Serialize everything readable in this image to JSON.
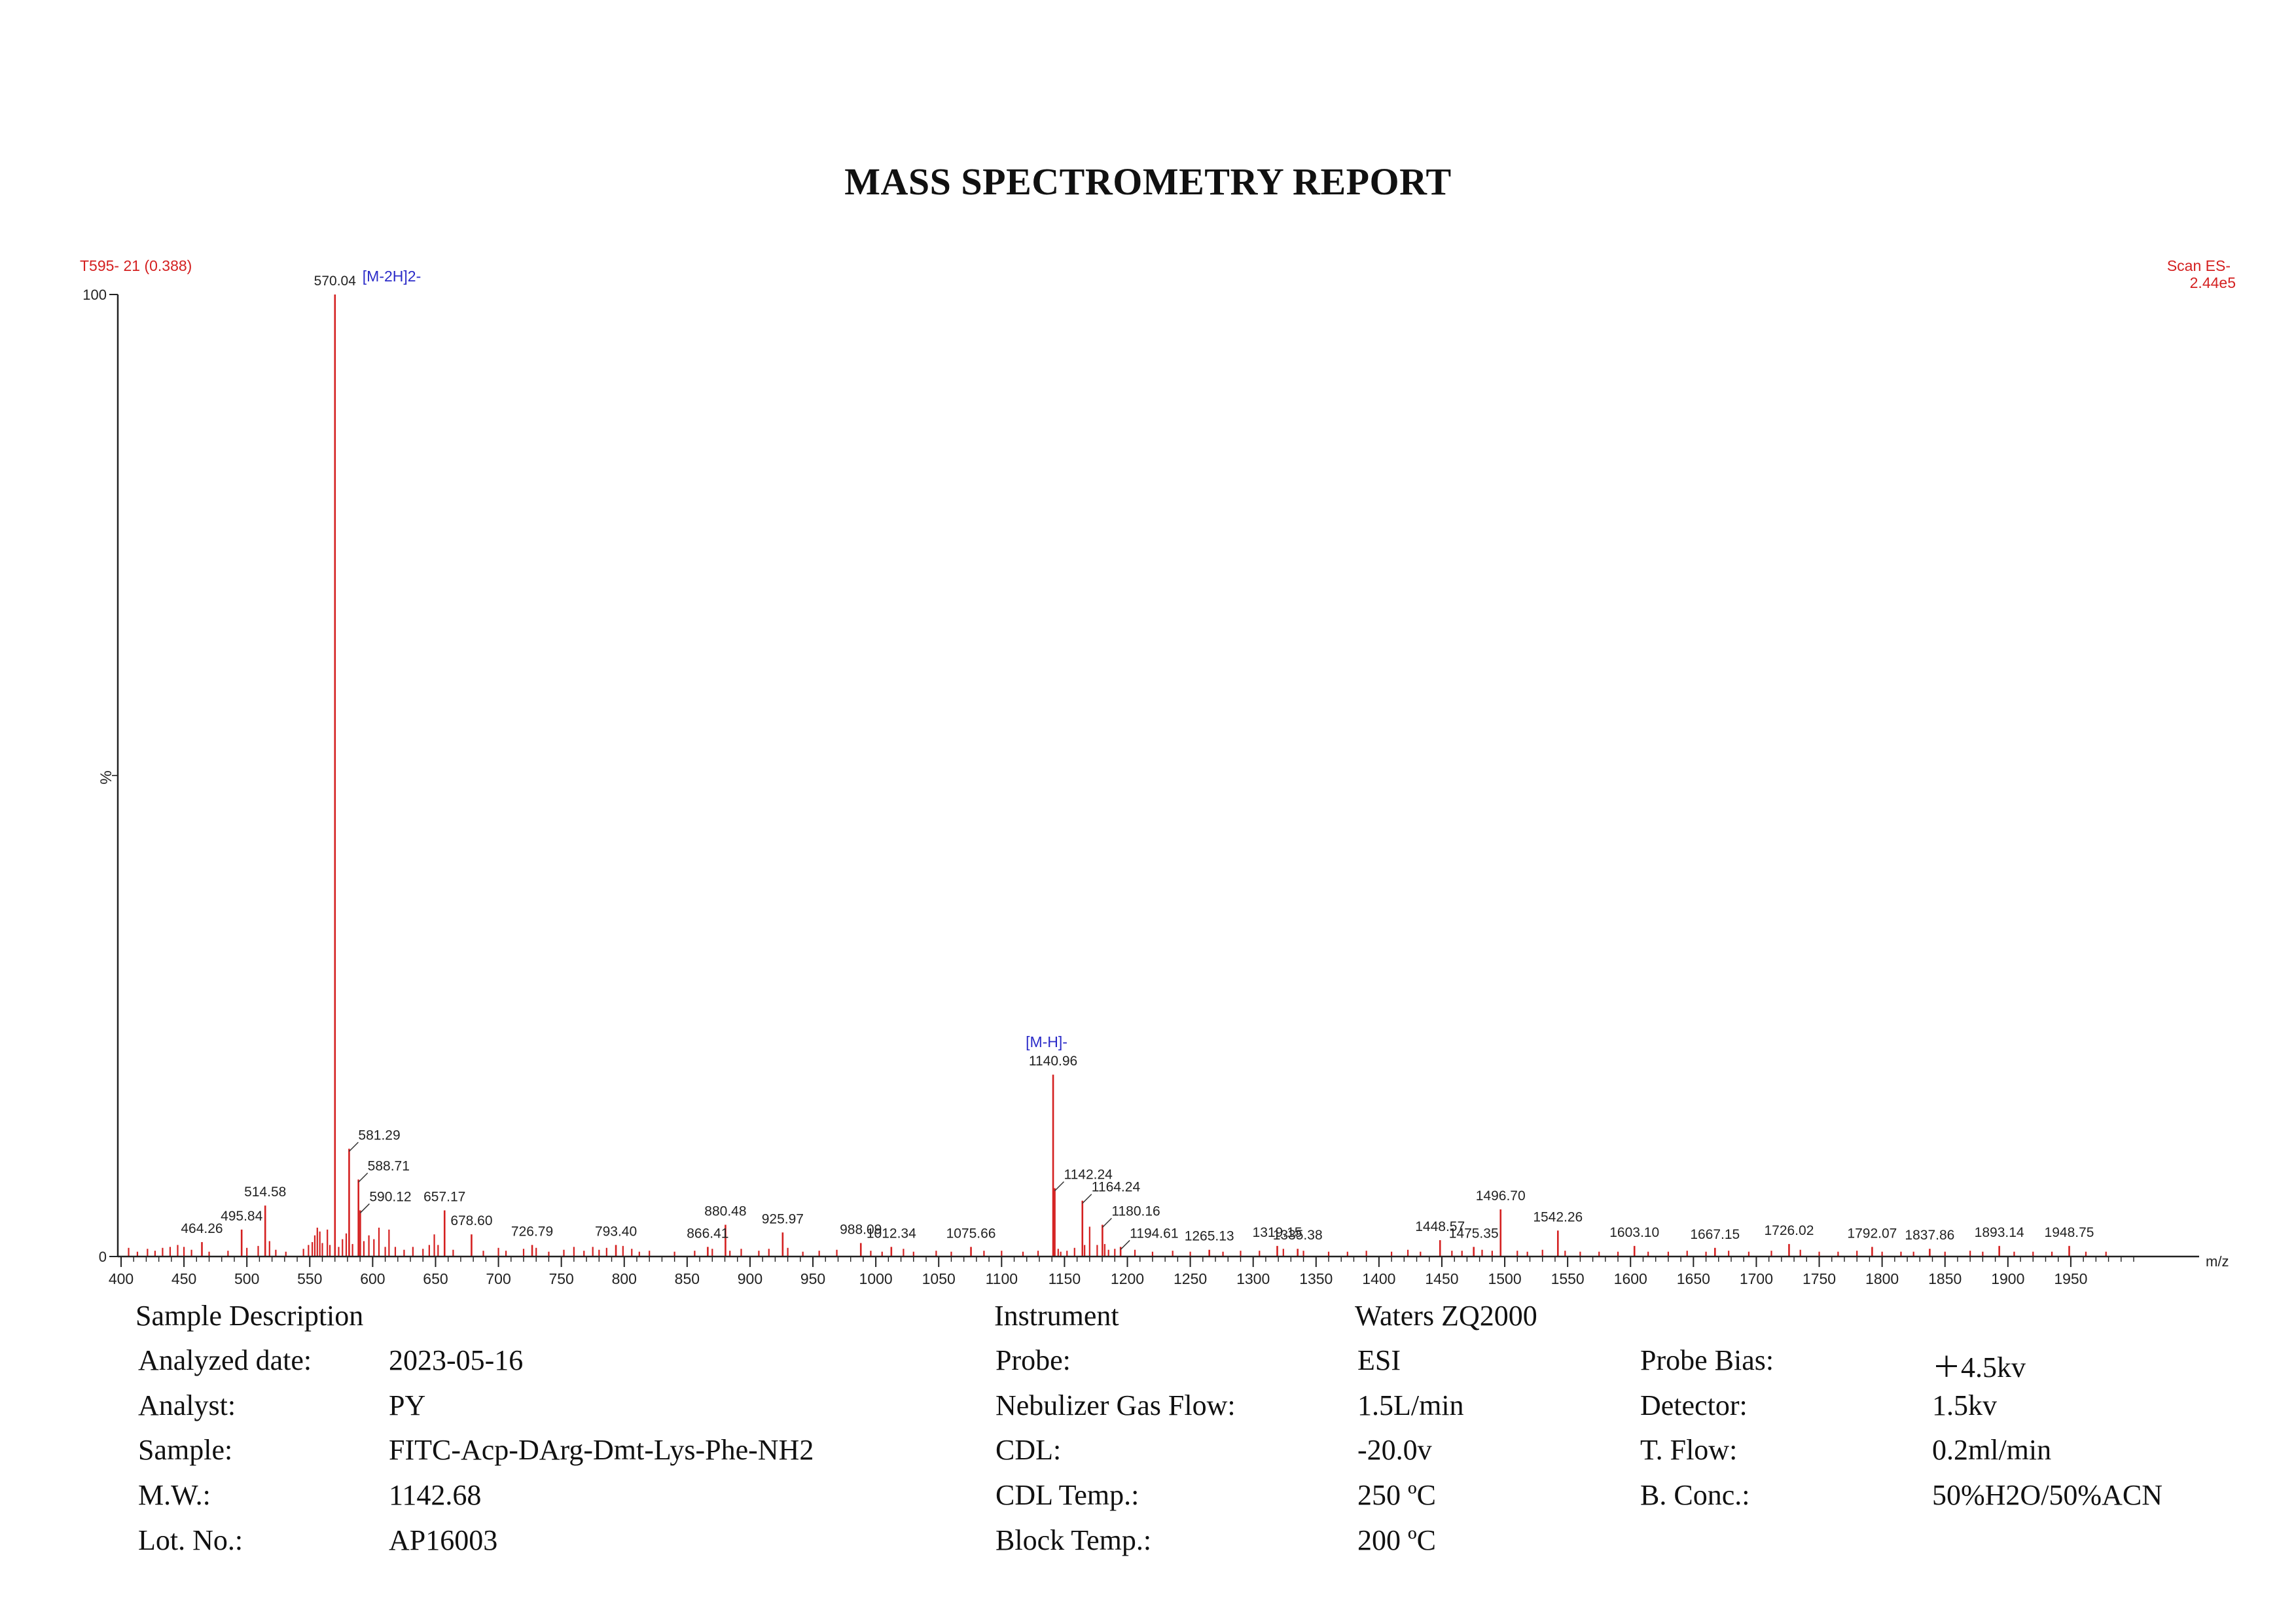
{
  "report_title": "MASS SPECTROMETRY REPORT",
  "chart_data": {
    "type": "bar",
    "title": "",
    "sample_tag": "T595- 21 (0.388)",
    "scan_info": [
      "Scan ES-",
      "2.44e5"
    ],
    "xlabel": "m/z",
    "ylabel": "%",
    "xlim": [
      400,
      2000
    ],
    "ylim": [
      0,
      100
    ],
    "x_ticks": [
      400,
      450,
      500,
      550,
      600,
      650,
      700,
      750,
      800,
      850,
      900,
      950,
      1000,
      1050,
      1100,
      1150,
      1200,
      1250,
      1300,
      1350,
      1400,
      1450,
      1500,
      1550,
      1600,
      1650,
      1700,
      1750,
      1800,
      1850,
      1900,
      1950
    ],
    "y_ticks": [
      0,
      100
    ],
    "colors": {
      "peak": "#d42020",
      "annotation": "#2a2ac8",
      "header": "#d42020"
    },
    "labeled_peaks": [
      {
        "mz": 570.04,
        "intensity": 100,
        "label": "570.04",
        "ion": "[M-2H]2-"
      },
      {
        "mz": 1140.96,
        "intensity": 18.9,
        "label": "1140.96",
        "ion": "[M-H]-"
      },
      {
        "mz": 581.29,
        "intensity": 11.2,
        "label": "581.29"
      },
      {
        "mz": 588.71,
        "intensity": 8.0,
        "label": "588.71"
      },
      {
        "mz": 590.12,
        "intensity": 4.8,
        "label": "590.12"
      },
      {
        "mz": 514.58,
        "intensity": 5.3,
        "label": "514.58"
      },
      {
        "mz": 495.84,
        "intensity": 2.8,
        "label": "495.84"
      },
      {
        "mz": 464.26,
        "intensity": 1.5,
        "label": "464.26"
      },
      {
        "mz": 657.17,
        "intensity": 4.8,
        "label": "657.17"
      },
      {
        "mz": 678.6,
        "intensity": 2.3,
        "label": "678.60"
      },
      {
        "mz": 726.79,
        "intensity": 1.2,
        "label": "726.79"
      },
      {
        "mz": 793.4,
        "intensity": 1.2,
        "label": "793.40"
      },
      {
        "mz": 866.41,
        "intensity": 1.0,
        "label": "866.41"
      },
      {
        "mz": 880.48,
        "intensity": 3.3,
        "label": "880.48"
      },
      {
        "mz": 925.97,
        "intensity": 2.5,
        "label": "925.97"
      },
      {
        "mz": 988.09,
        "intensity": 1.4,
        "label": "988.09"
      },
      {
        "mz": 1012.34,
        "intensity": 1.0,
        "label": "1012.34"
      },
      {
        "mz": 1075.66,
        "intensity": 1.0,
        "label": "1075.66"
      },
      {
        "mz": 1142.24,
        "intensity": 7.1,
        "label": "1142.24"
      },
      {
        "mz": 1164.24,
        "intensity": 5.8,
        "label": "1164.24"
      },
      {
        "mz": 1180.16,
        "intensity": 3.3,
        "label": "1180.16"
      },
      {
        "mz": 1194.61,
        "intensity": 1.0,
        "label": "1194.61"
      },
      {
        "mz": 1265.13,
        "intensity": 0.7,
        "label": "1265.13"
      },
      {
        "mz": 1319.15,
        "intensity": 1.1,
        "label": "1319.15"
      },
      {
        "mz": 1335.38,
        "intensity": 0.8,
        "label": "1335.38"
      },
      {
        "mz": 1448.57,
        "intensity": 1.7,
        "label": "1448.57"
      },
      {
        "mz": 1475.35,
        "intensity": 1.0,
        "label": "1475.35"
      },
      {
        "mz": 1496.7,
        "intensity": 4.9,
        "label": "1496.70"
      },
      {
        "mz": 1542.26,
        "intensity": 2.7,
        "label": "1542.26"
      },
      {
        "mz": 1603.1,
        "intensity": 1.1,
        "label": "1603.10"
      },
      {
        "mz": 1667.15,
        "intensity": 0.9,
        "label": "1667.15"
      },
      {
        "mz": 1726.02,
        "intensity": 1.3,
        "label": "1726.02"
      },
      {
        "mz": 1792.07,
        "intensity": 1.0,
        "label": "1792.07"
      },
      {
        "mz": 1837.86,
        "intensity": 0.8,
        "label": "1837.86"
      },
      {
        "mz": 1893.14,
        "intensity": 1.1,
        "label": "1893.14"
      },
      {
        "mz": 1948.75,
        "intensity": 1.1,
        "label": "1948.75"
      }
    ],
    "minor_peaks": [
      [
        406,
        0.9
      ],
      [
        413,
        0.5
      ],
      [
        421,
        0.8
      ],
      [
        427,
        0.6
      ],
      [
        433,
        0.9
      ],
      [
        439,
        1.0
      ],
      [
        445,
        1.2
      ],
      [
        450,
        1.0
      ],
      [
        456,
        0.7
      ],
      [
        470,
        0.5
      ],
      [
        485,
        0.6
      ],
      [
        500,
        0.9
      ],
      [
        509,
        1.1
      ],
      [
        518,
        1.6
      ],
      [
        523,
        0.7
      ],
      [
        531,
        0.5
      ],
      [
        545,
        0.8
      ],
      [
        549,
        1.2
      ],
      [
        552,
        1.5
      ],
      [
        554,
        2.2
      ],
      [
        556,
        3.0
      ],
      [
        558,
        2.6
      ],
      [
        560,
        1.4
      ],
      [
        564,
        2.8
      ],
      [
        566,
        1.2
      ],
      [
        573,
        1.0
      ],
      [
        576,
        1.8
      ],
      [
        579,
        2.4
      ],
      [
        584,
        1.3
      ],
      [
        593,
        1.6
      ],
      [
        597,
        2.2
      ],
      [
        601,
        1.8
      ],
      [
        605,
        3.0
      ],
      [
        610,
        1.0
      ],
      [
        613,
        2.8
      ],
      [
        618,
        1.0
      ],
      [
        625,
        0.7
      ],
      [
        632,
        1.0
      ],
      [
        640,
        0.8
      ],
      [
        645,
        1.2
      ],
      [
        649,
        2.3
      ],
      [
        652,
        1.2
      ],
      [
        664,
        0.7
      ],
      [
        688,
        0.6
      ],
      [
        700,
        0.9
      ],
      [
        706,
        0.6
      ],
      [
        720,
        0.8
      ],
      [
        730,
        0.9
      ],
      [
        740,
        0.5
      ],
      [
        752,
        0.7
      ],
      [
        760,
        1.0
      ],
      [
        768,
        0.6
      ],
      [
        775,
        1.0
      ],
      [
        780,
        0.7
      ],
      [
        786,
        0.9
      ],
      [
        799,
        1.1
      ],
      [
        806,
        0.8
      ],
      [
        812,
        0.5
      ],
      [
        820,
        0.6
      ],
      [
        840,
        0.5
      ],
      [
        856,
        0.6
      ],
      [
        870,
        0.8
      ],
      [
        884,
        0.6
      ],
      [
        893,
        0.8
      ],
      [
        907,
        0.6
      ],
      [
        915,
        0.8
      ],
      [
        930,
        0.9
      ],
      [
        942,
        0.5
      ],
      [
        955,
        0.6
      ],
      [
        969,
        0.7
      ],
      [
        996,
        0.6
      ],
      [
        1005,
        0.5
      ],
      [
        1022,
        0.8
      ],
      [
        1030,
        0.5
      ],
      [
        1048,
        0.6
      ],
      [
        1060,
        0.5
      ],
      [
        1086,
        0.6
      ],
      [
        1100,
        0.6
      ],
      [
        1117,
        0.5
      ],
      [
        1129,
        0.6
      ],
      [
        1145,
        0.8
      ],
      [
        1147,
        0.5
      ],
      [
        1152,
        0.6
      ],
      [
        1158,
        0.9
      ],
      [
        1166,
        1.2
      ],
      [
        1170,
        3.1
      ],
      [
        1176,
        1.2
      ],
      [
        1182,
        1.3
      ],
      [
        1185,
        0.7
      ],
      [
        1190,
        0.8
      ],
      [
        1206,
        0.7
      ],
      [
        1220,
        0.5
      ],
      [
        1236,
        0.6
      ],
      [
        1250,
        0.5
      ],
      [
        1276,
        0.5
      ],
      [
        1290,
        0.6
      ],
      [
        1305,
        0.6
      ],
      [
        1324,
        0.8
      ],
      [
        1340,
        0.6
      ],
      [
        1360,
        0.5
      ],
      [
        1375,
        0.5
      ],
      [
        1390,
        0.6
      ],
      [
        1410,
        0.5
      ],
      [
        1423,
        0.7
      ],
      [
        1433,
        0.5
      ],
      [
        1458,
        0.6
      ],
      [
        1466,
        0.6
      ],
      [
        1482,
        0.7
      ],
      [
        1490,
        0.6
      ],
      [
        1510,
        0.6
      ],
      [
        1518,
        0.5
      ],
      [
        1530,
        0.7
      ],
      [
        1548,
        0.6
      ],
      [
        1560,
        0.5
      ],
      [
        1575,
        0.5
      ],
      [
        1590,
        0.5
      ],
      [
        1614,
        0.5
      ],
      [
        1630,
        0.5
      ],
      [
        1645,
        0.6
      ],
      [
        1660,
        0.5
      ],
      [
        1678,
        0.6
      ],
      [
        1694,
        0.5
      ],
      [
        1712,
        0.6
      ],
      [
        1735,
        0.7
      ],
      [
        1750,
        0.5
      ],
      [
        1765,
        0.5
      ],
      [
        1780,
        0.6
      ],
      [
        1800,
        0.5
      ],
      [
        1815,
        0.5
      ],
      [
        1825,
        0.5
      ],
      [
        1850,
        0.5
      ],
      [
        1870,
        0.6
      ],
      [
        1880,
        0.5
      ],
      [
        1905,
        0.5
      ],
      [
        1920,
        0.5
      ],
      [
        1935,
        0.5
      ],
      [
        1962,
        0.5
      ],
      [
        1978,
        0.5
      ]
    ]
  },
  "sample_description": {
    "heading": "Sample Description",
    "rows": [
      {
        "label": "Analyzed date:",
        "value": "2023-05-16"
      },
      {
        "label": "Analyst:",
        "value": "PY"
      },
      {
        "label": "Sample:",
        "value": "FITC-Acp-DArg-Dmt-Lys-Phe-NH2"
      },
      {
        "label": "M.W.:",
        "value": "1142.68"
      },
      {
        "label": "Lot. No.:",
        "value": "AP16003"
      }
    ]
  },
  "instrument": {
    "heading": "Instrument",
    "name": "Waters ZQ2000",
    "rows": [
      {
        "label": "Probe:",
        "value": "ESI"
      },
      {
        "label": "Nebulizer Gas Flow:",
        "value": "1.5L/min"
      },
      {
        "label": "CDL:",
        "value": "-20.0v"
      },
      {
        "label": "CDL Temp.:",
        "value": "250 ºC"
      },
      {
        "label": "Block Temp.:",
        "value": "200 ºC"
      }
    ],
    "extra_rows": [
      {
        "label": "Probe Bias:",
        "value": "＋4.5kv"
      },
      {
        "label": "Detector:",
        "value": "1.5kv"
      },
      {
        "label": "T. Flow:",
        "value": "0.2ml/min"
      },
      {
        "label": "B. Conc.:",
        "value": "50%H2O/50%ACN"
      }
    ]
  }
}
